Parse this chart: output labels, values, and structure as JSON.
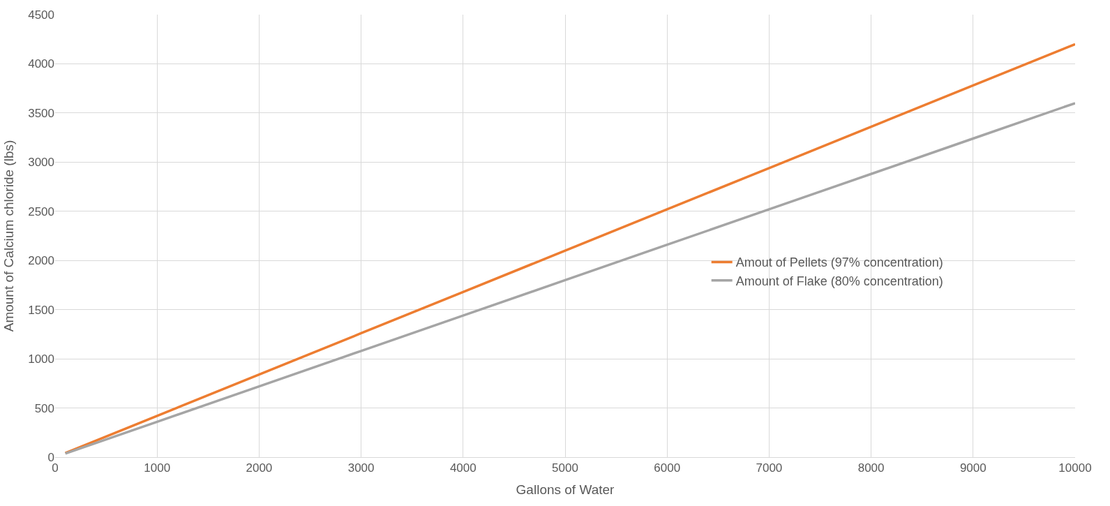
{
  "chart_data": {
    "type": "line",
    "xlabel": "Gallons of Water",
    "ylabel": "Amount of Calcium chloride (lbs)",
    "x": [
      100,
      1000,
      2000,
      3000,
      4000,
      5000,
      6000,
      7000,
      8000,
      9000,
      10000
    ],
    "series": [
      {
        "name": "Amout of Pellets (97% concentration)",
        "color": "#ed7d31",
        "values": [
          42,
          420,
          840,
          1260,
          1680,
          2100,
          2520,
          2940,
          3360,
          3780,
          4200
        ]
      },
      {
        "name": "Amount of Flake (80% concentration)",
        "color": "#a5a5a5",
        "values": [
          36,
          360,
          720,
          1080,
          1440,
          1800,
          2160,
          2520,
          2880,
          3240,
          3600
        ]
      }
    ],
    "xlim": [
      0,
      10000
    ],
    "xticks": [
      0,
      1000,
      2000,
      3000,
      4000,
      5000,
      6000,
      7000,
      8000,
      9000,
      10000
    ],
    "ylim": [
      0,
      4500
    ],
    "yticks": [
      0,
      500,
      1000,
      1500,
      2000,
      2500,
      3000,
      3500,
      4000,
      4500
    ],
    "grid": true,
    "legend": "right",
    "marker": "none",
    "line_style": "solid"
  }
}
